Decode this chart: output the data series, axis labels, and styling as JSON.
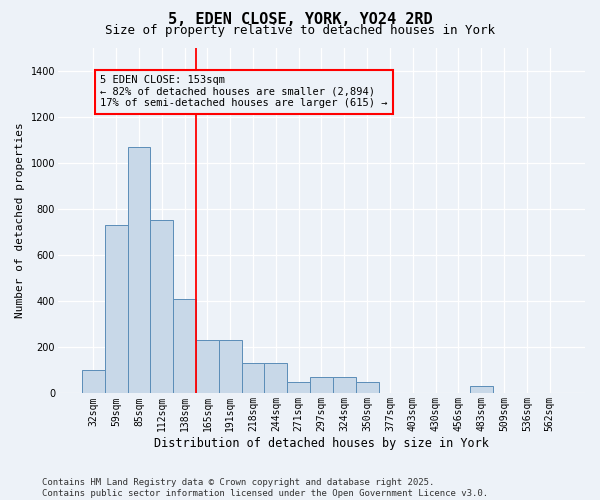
{
  "title": "5, EDEN CLOSE, YORK, YO24 2RD",
  "subtitle": "Size of property relative to detached houses in York",
  "xlabel": "Distribution of detached houses by size in York",
  "ylabel": "Number of detached properties",
  "categories": [
    "32sqm",
    "59sqm",
    "85sqm",
    "112sqm",
    "138sqm",
    "165sqm",
    "191sqm",
    "218sqm",
    "244sqm",
    "271sqm",
    "297sqm",
    "324sqm",
    "350sqm",
    "377sqm",
    "403sqm",
    "430sqm",
    "456sqm",
    "483sqm",
    "509sqm",
    "536sqm",
    "562sqm"
  ],
  "values": [
    100,
    730,
    1070,
    750,
    410,
    230,
    230,
    130,
    130,
    50,
    70,
    70,
    50,
    0,
    0,
    0,
    0,
    30,
    0,
    0,
    0
  ],
  "bar_color": "#c8d8e8",
  "bar_edge_color": "#5b8db8",
  "vline_position": 4.5,
  "vline_color": "red",
  "annotation_line1": "5 EDEN CLOSE: 153sqm",
  "annotation_line2": "← 82% of detached houses are smaller (2,894)",
  "annotation_line3": "17% of semi-detached houses are larger (615) →",
  "annotation_box_edgecolor": "red",
  "ylim": [
    0,
    1500
  ],
  "yticks": [
    0,
    200,
    400,
    600,
    800,
    1000,
    1200,
    1400
  ],
  "bg_color": "#edf2f8",
  "grid_color": "#ffffff",
  "footer_line1": "Contains HM Land Registry data © Crown copyright and database right 2025.",
  "footer_line2": "Contains public sector information licensed under the Open Government Licence v3.0.",
  "title_fontsize": 11,
  "subtitle_fontsize": 9,
  "xlabel_fontsize": 8.5,
  "ylabel_fontsize": 8,
  "tick_fontsize": 7,
  "annot_fontsize": 7.5,
  "footer_fontsize": 6.5
}
